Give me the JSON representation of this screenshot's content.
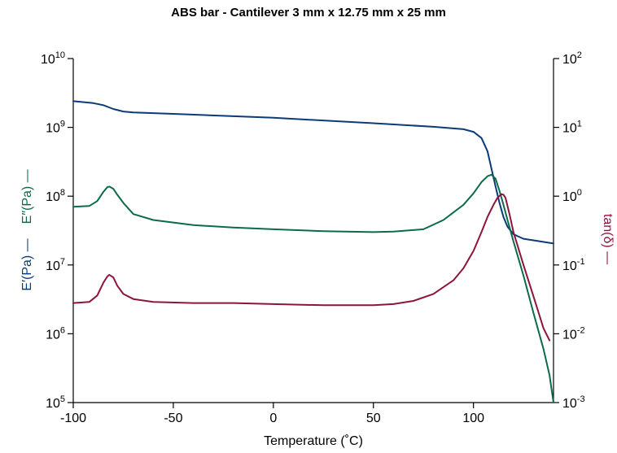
{
  "chart_data": {
    "type": "line",
    "title": "ABS bar - Cantilever 3 mm x 12.75 mm x 25 mm",
    "xlabel": "Temperature (˚C)",
    "ylabel_left_parts": [
      {
        "text": "E′(Pa) —",
        "color": "#0b3b78"
      },
      {
        "text": "E″(Pa) —",
        "color": "#0b6b4a"
      }
    ],
    "ylabel_right": "tan(δ) —",
    "xlim": [
      -100,
      140
    ],
    "ylim_left": [
      100000,
      10000000000
    ],
    "ylim_right": [
      0.001,
      100
    ],
    "y_scale": "log",
    "grid": false,
    "x_ticks": [
      {
        "v": -100,
        "label": "-100"
      },
      {
        "v": -50,
        "label": "-50"
      },
      {
        "v": 0,
        "label": "0"
      },
      {
        "v": 50,
        "label": "50"
      },
      {
        "v": 100,
        "label": "100"
      }
    ],
    "y_left_ticks": [
      {
        "v": 100000,
        "base": "10",
        "exp": "5"
      },
      {
        "v": 1000000,
        "base": "10",
        "exp": "6"
      },
      {
        "v": 10000000,
        "base": "10",
        "exp": "7"
      },
      {
        "v": 100000000,
        "base": "10",
        "exp": "8"
      },
      {
        "v": 1000000000,
        "base": "10",
        "exp": "9"
      },
      {
        "v": 10000000000,
        "base": "10",
        "exp": "10"
      }
    ],
    "y_right_ticks": [
      {
        "v": 0.001,
        "base": "10",
        "exp": "-3"
      },
      {
        "v": 0.01,
        "base": "10",
        "exp": "-2"
      },
      {
        "v": 0.1,
        "base": "10",
        "exp": "-1"
      },
      {
        "v": 1,
        "base": "10",
        "exp": "0"
      },
      {
        "v": 10,
        "base": "10",
        "exp": "1"
      },
      {
        "v": 100,
        "base": "10",
        "exp": "2"
      }
    ],
    "series": [
      {
        "axis": "left",
        "color": "#0b3b78",
        "x": [
          -100,
          -90,
          -85,
          -80,
          -75,
          -70,
          -50,
          0,
          50,
          80,
          95,
          100,
          104,
          107,
          109,
          111,
          113,
          115,
          117,
          120,
          125,
          130,
          140
        ],
        "y": [
          2400000000,
          2250000000,
          2100000000,
          1850000000,
          1700000000,
          1650000000,
          1570000000,
          1380000000,
          1150000000,
          1020000000,
          940000000,
          860000000,
          700000000,
          450000000,
          250000000,
          140000000,
          80000000,
          50000000,
          36000000,
          28000000,
          24000000,
          22800000,
          20500000
        ]
      },
      {
        "axis": "left",
        "color": "#0b6b4a",
        "x": [
          -100,
          -92,
          -88,
          -85,
          -83,
          -82,
          -80,
          -78,
          -75,
          -70,
          -60,
          -40,
          -20,
          0,
          25,
          50,
          60,
          75,
          85,
          95,
          100,
          104,
          107,
          109,
          111,
          113,
          115,
          117,
          120,
          125,
          130,
          135,
          138,
          140
        ],
        "y": [
          70000000,
          72000000,
          85000000,
          115000000,
          135000000,
          138000000,
          128000000,
          105000000,
          80000000,
          55000000,
          45000000,
          38000000,
          35000000,
          33000000,
          31000000,
          30000000,
          30500000,
          33000000,
          45000000,
          75000000,
          110000000,
          160000000,
          195000000,
          205000000,
          180000000,
          120000000,
          75000000,
          45000000,
          22000000,
          7000000,
          2000000,
          600000,
          250000,
          100000
        ]
      },
      {
        "axis": "right",
        "color": "#8e1440",
        "x": [
          -100,
          -92,
          -88,
          -85,
          -83,
          -82,
          -80,
          -78,
          -75,
          -70,
          -60,
          -40,
          -20,
          0,
          25,
          50,
          60,
          70,
          80,
          90,
          95,
          100,
          104,
          107,
          110,
          112,
          114,
          115,
          116,
          118,
          120,
          125,
          130,
          135,
          138
        ],
        "y": [
          0.028,
          0.029,
          0.036,
          0.055,
          0.068,
          0.072,
          0.066,
          0.05,
          0.038,
          0.032,
          0.029,
          0.028,
          0.028,
          0.027,
          0.026,
          0.026,
          0.027,
          0.03,
          0.038,
          0.06,
          0.09,
          0.16,
          0.3,
          0.5,
          0.75,
          0.95,
          1.07,
          1.05,
          0.95,
          0.55,
          0.3,
          0.1,
          0.035,
          0.012,
          0.008
        ]
      }
    ]
  }
}
